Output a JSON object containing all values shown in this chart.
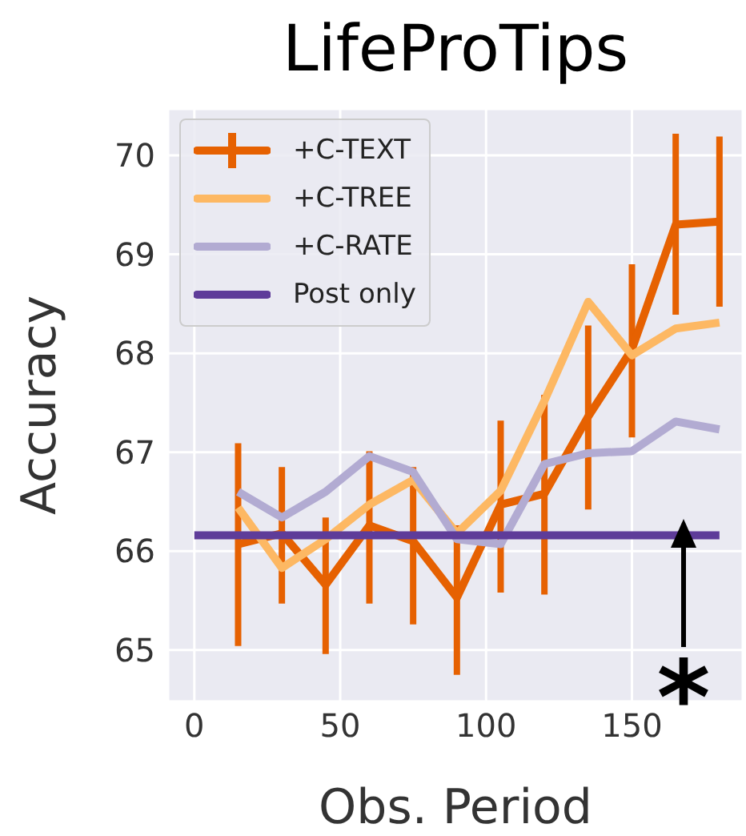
{
  "chart_data": {
    "type": "line",
    "title": "LifeProTips",
    "xlabel": "Obs. Period",
    "ylabel": "Accuracy",
    "xlim": [
      -9,
      188
    ],
    "xticks": [
      0,
      50,
      100,
      150
    ],
    "ylim": [
      64.48,
      70.47
    ],
    "yticks": [
      65,
      66,
      67,
      68,
      69,
      70
    ],
    "grid": true,
    "legend": "top left",
    "marker": "none",
    "line_style": "solid",
    "annotations": [
      "*"
    ],
    "series": [
      {
        "name": "+C-TEXT",
        "color": "#e66101",
        "x": [
          15,
          30,
          45,
          60,
          75,
          90,
          105,
          120,
          135,
          150,
          165,
          180
        ],
        "values": [
          66.07,
          66.18,
          65.66,
          66.26,
          66.1,
          65.53,
          66.47,
          66.58,
          67.36,
          68.04,
          69.3,
          69.33
        ],
        "errors": [
          [
            65.04,
            67.09
          ],
          [
            65.47,
            66.85
          ],
          [
            64.96,
            66.34
          ],
          [
            65.47,
            67.01
          ],
          [
            65.26,
            66.85
          ],
          [
            64.75,
            66.26
          ],
          [
            65.58,
            67.32
          ],
          [
            65.56,
            67.58
          ],
          [
            66.42,
            68.28
          ],
          [
            67.15,
            68.9
          ],
          [
            68.39,
            70.22
          ],
          [
            68.47,
            70.19
          ]
        ]
      },
      {
        "name": "+C-TREE",
        "color": "#fdb863",
        "x": [
          15,
          30,
          45,
          60,
          75,
          90,
          105,
          120,
          135,
          150,
          165,
          180
        ],
        "values": [
          66.44,
          65.83,
          66.12,
          66.47,
          66.72,
          66.18,
          66.61,
          67.52,
          68.52,
          67.98,
          68.25,
          68.31
        ]
      },
      {
        "name": "+C-RATE",
        "color": "#b2abd2",
        "x": [
          15,
          30,
          45,
          60,
          75,
          90,
          105,
          120,
          135,
          150,
          165,
          180
        ],
        "values": [
          66.6,
          66.34,
          66.6,
          66.96,
          66.8,
          66.12,
          66.07,
          66.88,
          66.99,
          67.01,
          67.31,
          67.23
        ]
      },
      {
        "name": "Post only",
        "color": "#5e3c99",
        "x": [
          0,
          180
        ],
        "values": [
          66.16,
          66.16
        ]
      }
    ]
  }
}
